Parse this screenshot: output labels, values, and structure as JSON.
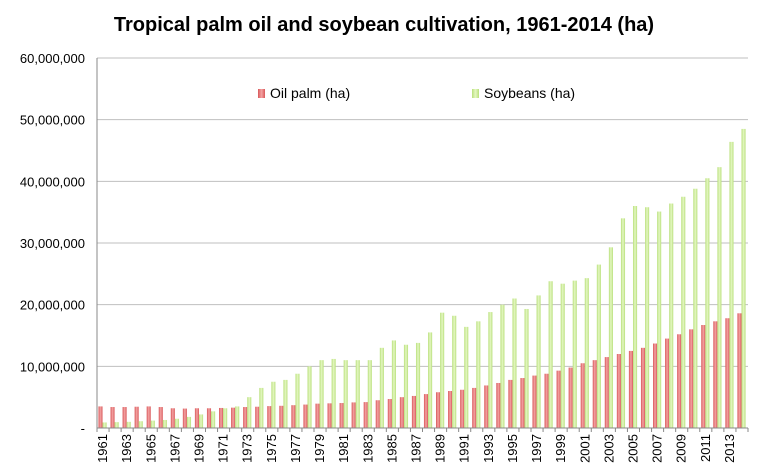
{
  "chart_data": {
    "type": "bar",
    "title": "Tropical palm oil and soybean cultivation, 1961-2014 (ha)",
    "xlabel": "",
    "ylabel": "",
    "ylim": [
      0,
      60000000
    ],
    "y_ticks": [
      "-",
      "10,000,000",
      "20,000,000",
      "30,000,000",
      "40,000,000",
      "50,000,000",
      "60,000,000"
    ],
    "grid": true,
    "legend_position": "top",
    "categories": [
      "1961",
      "1962",
      "1963",
      "1964",
      "1965",
      "1966",
      "1967",
      "1968",
      "1969",
      "1970",
      "1971",
      "1972",
      "1973",
      "1974",
      "1975",
      "1976",
      "1977",
      "1978",
      "1979",
      "1980",
      "1981",
      "1982",
      "1983",
      "1984",
      "1985",
      "1986",
      "1987",
      "1988",
      "1989",
      "1990",
      "1991",
      "1992",
      "1993",
      "1994",
      "1995",
      "1996",
      "1997",
      "1998",
      "1999",
      "2000",
      "2001",
      "2002",
      "2003",
      "2004",
      "2005",
      "2006",
      "2007",
      "2008",
      "2009",
      "2010",
      "2011",
      "2012",
      "2013",
      "2014"
    ],
    "x_tick_labels": [
      "1961",
      "1963",
      "1965",
      "1967",
      "1969",
      "1971",
      "1973",
      "1975",
      "1977",
      "1979",
      "1981",
      "1983",
      "1985",
      "1987",
      "1989",
      "1991",
      "1993",
      "1995",
      "1997",
      "1999",
      "2001",
      "2003",
      "2005",
      "2007",
      "2009",
      "2011",
      "2013"
    ],
    "series": [
      {
        "name": "Oil palm (ha)",
        "color": "#d9585a",
        "values": [
          3500000,
          3400000,
          3400000,
          3450000,
          3500000,
          3400000,
          3200000,
          3150000,
          3200000,
          3200000,
          3250000,
          3300000,
          3400000,
          3450000,
          3550000,
          3600000,
          3700000,
          3800000,
          3950000,
          4000000,
          4050000,
          4150000,
          4200000,
          4500000,
          4700000,
          5000000,
          5200000,
          5500000,
          5800000,
          6000000,
          6200000,
          6500000,
          6900000,
          7300000,
          7800000,
          8100000,
          8500000,
          8800000,
          9300000,
          9800000,
          10500000,
          11000000,
          11500000,
          12000000,
          12500000,
          13000000,
          13700000,
          14500000,
          15200000,
          16000000,
          16700000,
          17300000,
          17800000,
          18600000
        ]
      },
      {
        "name": "Soybeans (ha)",
        "color": "#b9e07c",
        "values": [
          900000,
          950000,
          1000000,
          1100000,
          1200000,
          1300000,
          1500000,
          1800000,
          2200000,
          2700000,
          3200000,
          3500000,
          5000000,
          6500000,
          7500000,
          7800000,
          8800000,
          10000000,
          11000000,
          11200000,
          11000000,
          11000000,
          11000000,
          13000000,
          14200000,
          13500000,
          13800000,
          15500000,
          18700000,
          18200000,
          16400000,
          17300000,
          18800000,
          20000000,
          21000000,
          19300000,
          21500000,
          23800000,
          23400000,
          23900000,
          24300000,
          26500000,
          29300000,
          34000000,
          36000000,
          35800000,
          35100000,
          36400000,
          37500000,
          38800000,
          40500000,
          42300000,
          46400000,
          48500000
        ]
      }
    ]
  }
}
